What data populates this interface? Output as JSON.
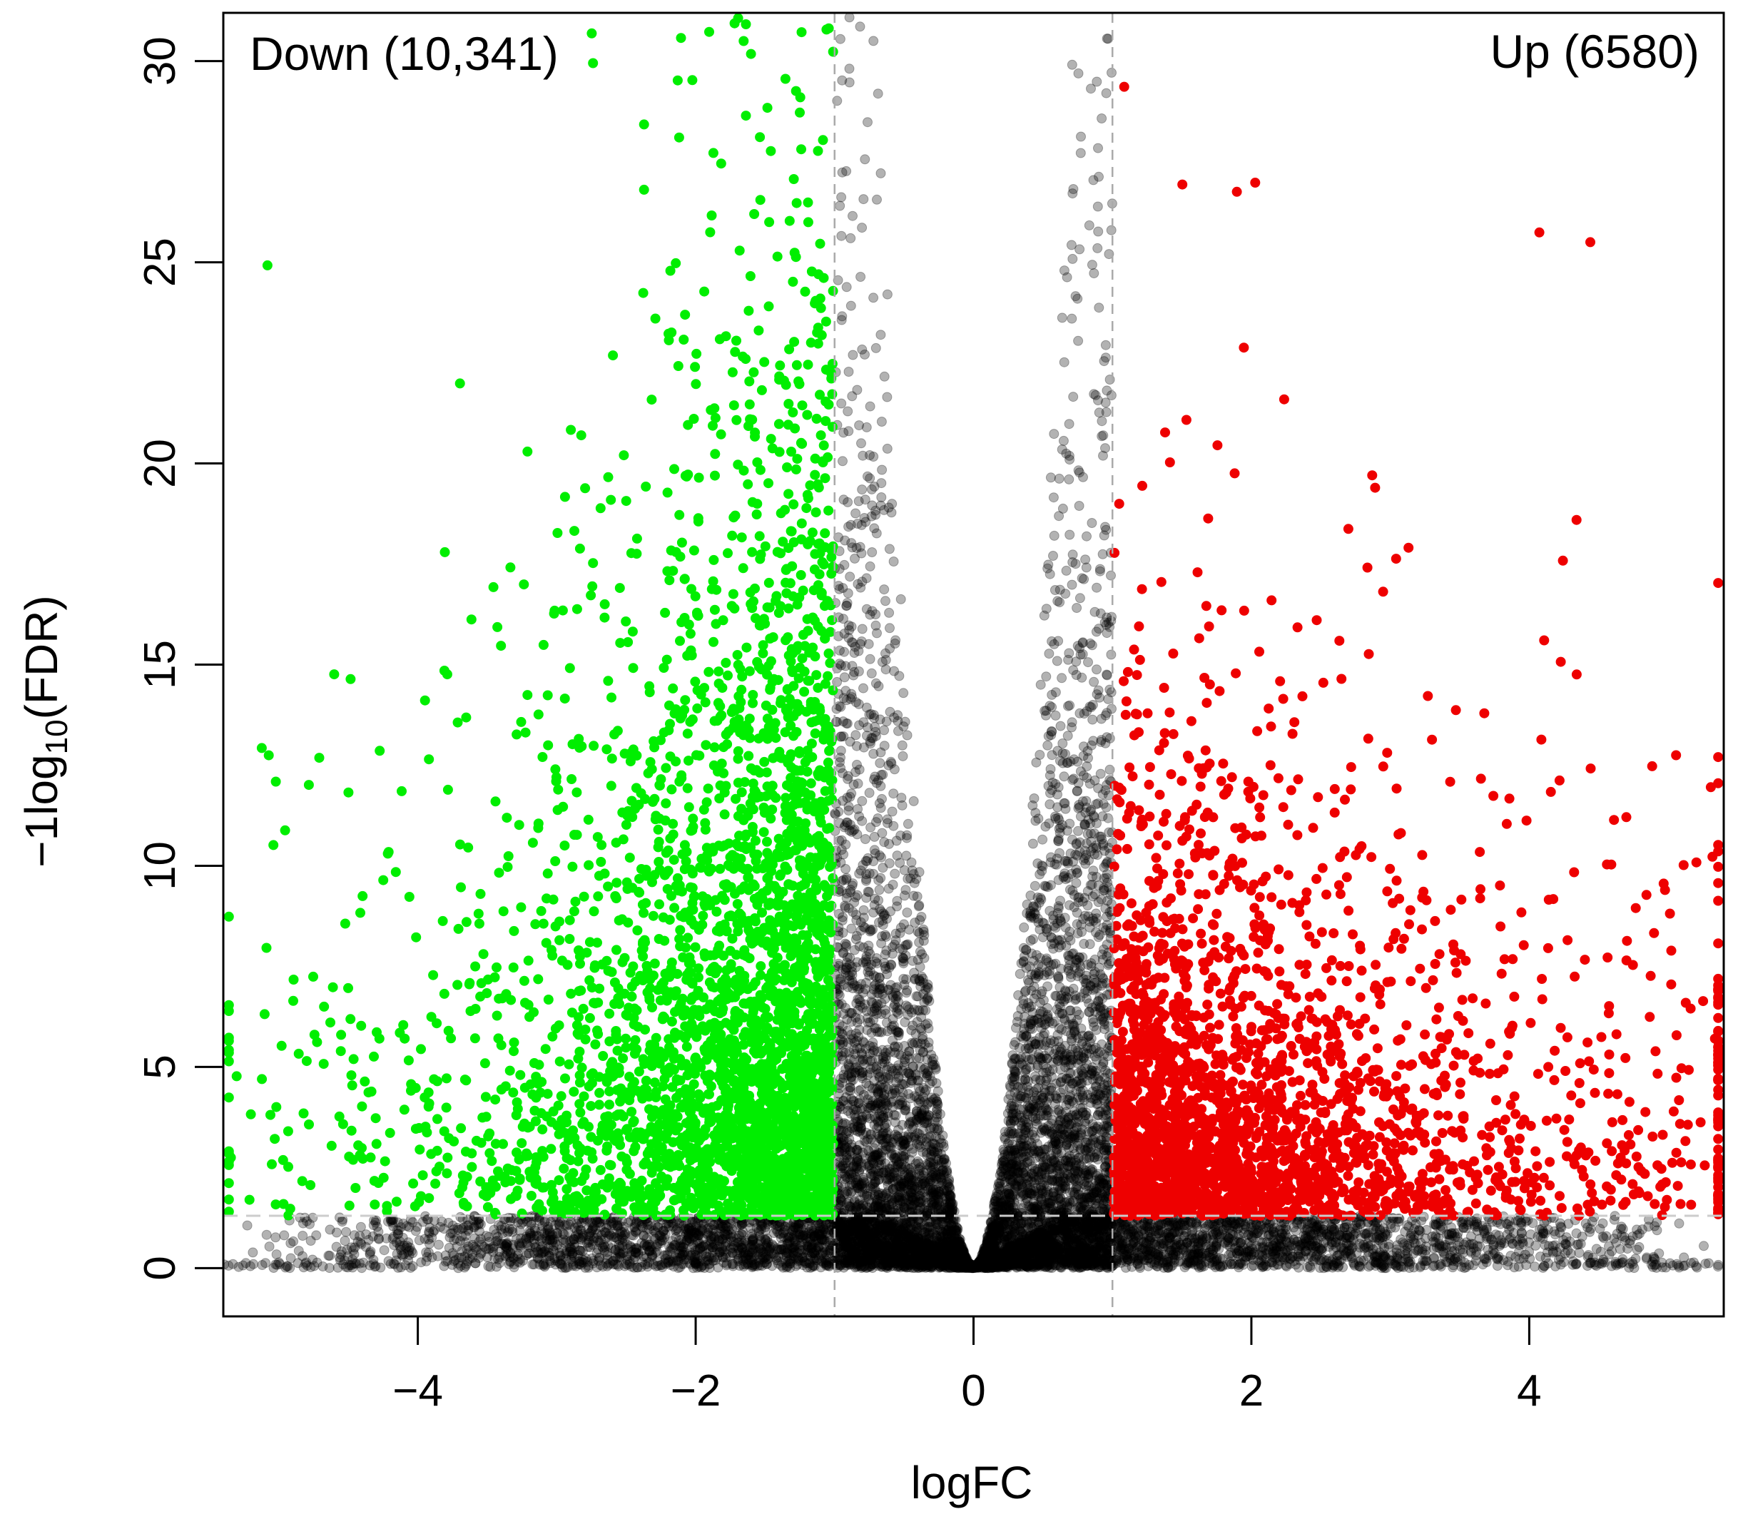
{
  "chart_data": {
    "type": "scatter",
    "title": "",
    "xlabel": "logFC",
    "ylabel": {
      "prefix": "−1log",
      "sub": "10",
      "suffix": "(FDR)"
    },
    "xlim": [
      -5.4,
      5.4
    ],
    "ylim": [
      -1.2,
      31.2
    ],
    "xticks": [
      -4,
      -2,
      0,
      2,
      4
    ],
    "xtick_labels": [
      "−4",
      "−2",
      "0",
      "2",
      "4"
    ],
    "yticks": [
      0,
      5,
      10,
      15,
      20,
      25,
      30
    ],
    "ytick_labels": [
      "0",
      "5",
      "10",
      "15",
      "20",
      "25",
      "30"
    ],
    "grid": false,
    "legend": "none",
    "thresholds": {
      "logFC": [
        -1,
        1
      ],
      "neglog10_fdr": 1.3
    },
    "annotations": {
      "down_label": "Down (10,341)",
      "up_label": "Up (6580)"
    },
    "series": [
      {
        "name": "Down (10,341)",
        "color": "#00ee00",
        "count": 10341
      },
      {
        "name": "Up (6580)",
        "color": "#ee0000",
        "count": 6580
      },
      {
        "color": "#000000",
        "opacity": 0.3
      }
    ]
  }
}
